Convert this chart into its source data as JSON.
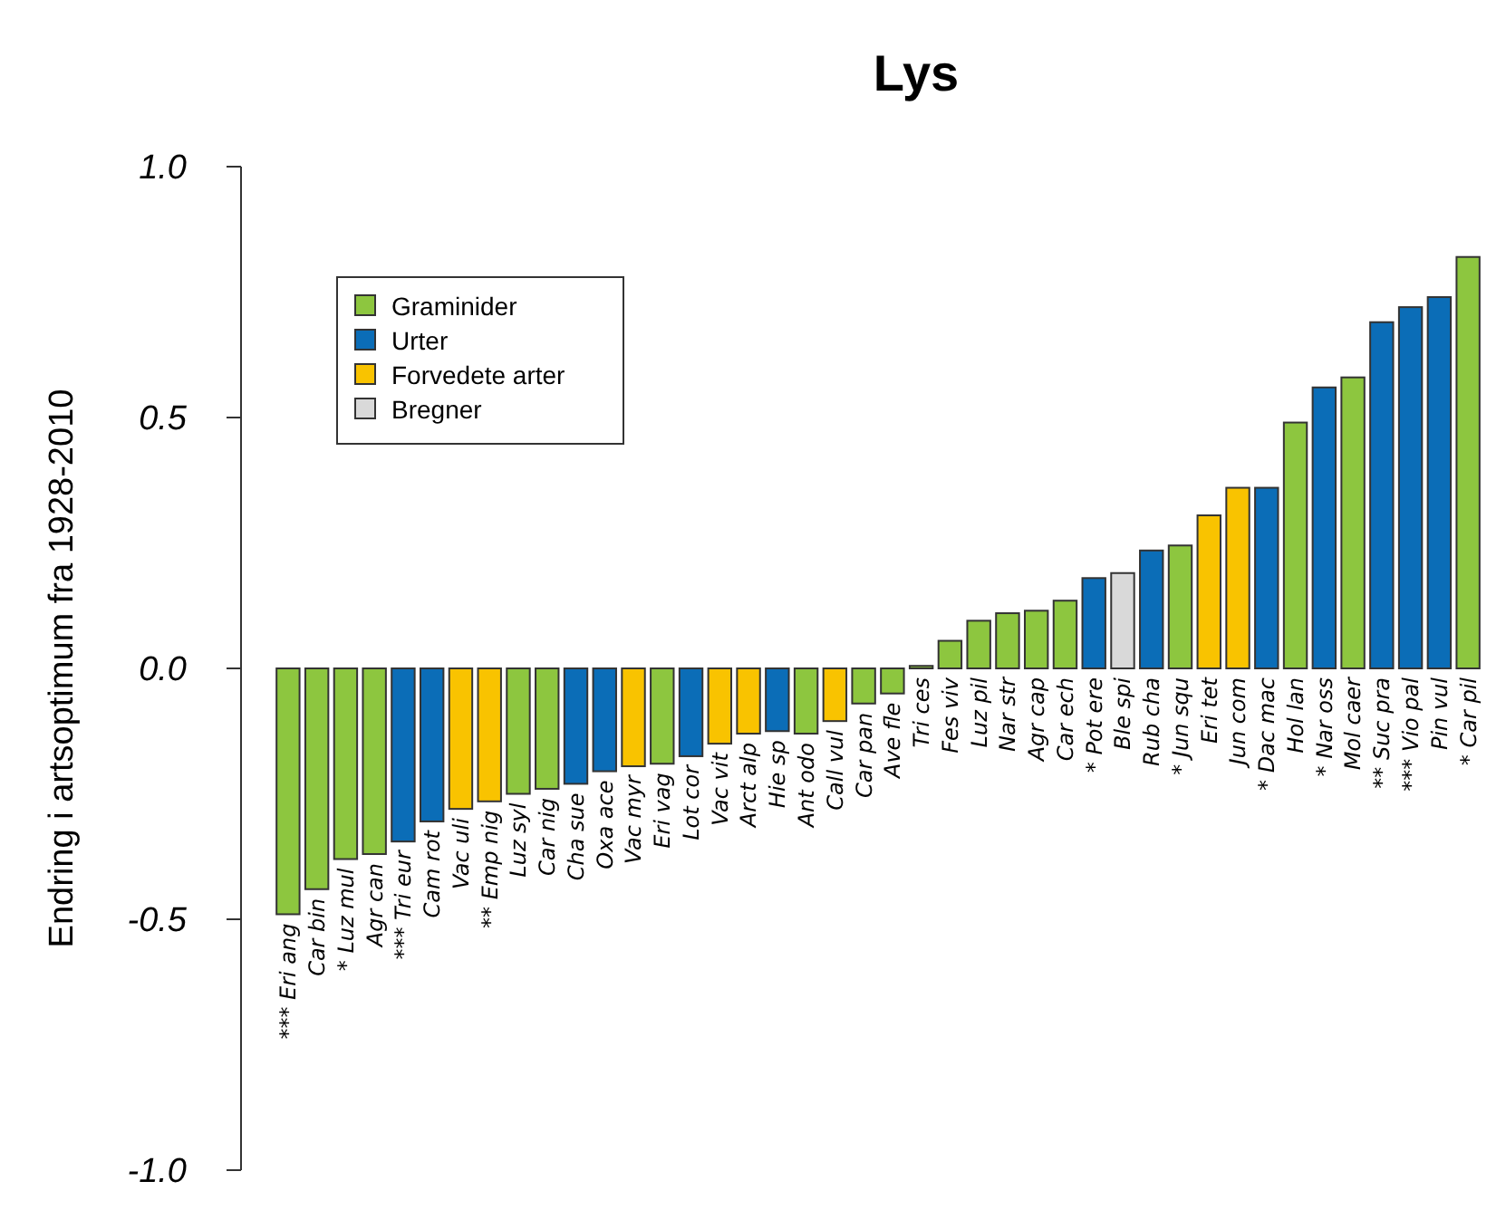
{
  "chart_data": {
    "type": "bar",
    "title": "Lys",
    "ylabel": "Endring i artsoptimum fra 1928-2010",
    "stacked": true,
    "legend": "top left",
    "ylim": [
      -1,
      1
    ],
    "yticks": [
      {
        "value": -1,
        "label": "-1.0"
      },
      {
        "value": -0.5,
        "label": "-0.5"
      },
      {
        "value": 0,
        "label": "0.0"
      },
      {
        "value": 0.5,
        "label": "0.5"
      },
      {
        "value": 1,
        "label": "1.0"
      }
    ],
    "categories": [
      "*** Eri ang",
      "Car bin",
      "* Luz mul",
      "Agr can",
      "*** Tri eur",
      "Cam rot",
      "Vac uli",
      "** Emp nig",
      "Luz syl",
      "Car nig",
      "Cha sue",
      "Oxa ace",
      "Vac myr",
      "Eri vag",
      "Lot cor",
      "Vac vit",
      "Arct alp",
      "Hie sp",
      "Ant odo",
      "Call vul",
      "Car pan",
      "Ave fle",
      "Tri ces",
      "Fes viv",
      "Luz pil",
      "Nar str",
      "Agr cap",
      "Car ech",
      "* Pot ere",
      "Ble spi",
      "Rub cha",
      "* Jun squ",
      "Eri tet",
      "Jun com",
      "* Dac mac",
      "Hol lan",
      "* Nar oss",
      "Mol caer",
      "** Suc pra",
      "*** Vio pal",
      "Pin vul",
      "* Car pil"
    ],
    "series": [
      {
        "name": "Graminider",
        "color": "#8dc63f",
        "values": [
          -0.49,
          -0.44,
          -0.38,
          -0.37,
          null,
          null,
          null,
          null,
          -0.25,
          -0.24,
          null,
          null,
          null,
          -0.19,
          null,
          null,
          null,
          null,
          -0.13,
          null,
          -0.07,
          -0.05,
          0.005,
          0.055,
          0.095,
          0.11,
          0.115,
          0.135,
          null,
          null,
          null,
          0.245,
          null,
          null,
          null,
          0.49,
          null,
          0.58,
          null,
          null,
          null,
          0.82
        ]
      },
      {
        "name": "Urter",
        "color": "#0b6db7",
        "values": [
          null,
          null,
          null,
          null,
          -0.345,
          -0.305,
          null,
          null,
          null,
          null,
          -0.23,
          -0.205,
          null,
          null,
          -0.175,
          null,
          null,
          -0.125,
          null,
          null,
          null,
          null,
          null,
          null,
          null,
          null,
          null,
          null,
          0.18,
          null,
          0.235,
          null,
          null,
          null,
          0.36,
          null,
          0.56,
          null,
          0.69,
          0.72,
          0.74,
          null
        ]
      },
      {
        "name": "Forvedete arter",
        "color": "#f9c300",
        "values": [
          null,
          null,
          null,
          null,
          null,
          null,
          -0.28,
          -0.265,
          null,
          null,
          null,
          null,
          -0.195,
          null,
          null,
          -0.15,
          -0.13,
          null,
          null,
          -0.105,
          null,
          null,
          null,
          null,
          null,
          null,
          null,
          null,
          null,
          null,
          null,
          null,
          0.305,
          0.36,
          null,
          null,
          null,
          null,
          null,
          null,
          null,
          null
        ]
      },
      {
        "name": "Bregner",
        "color": "#d9d9d9",
        "values": [
          null,
          null,
          null,
          null,
          null,
          null,
          null,
          null,
          null,
          null,
          null,
          null,
          null,
          null,
          null,
          null,
          null,
          null,
          null,
          null,
          null,
          null,
          null,
          null,
          null,
          null,
          null,
          null,
          null,
          0.19,
          null,
          null,
          null,
          null,
          null,
          null,
          null,
          null,
          null,
          null,
          null,
          null
        ]
      }
    ]
  }
}
